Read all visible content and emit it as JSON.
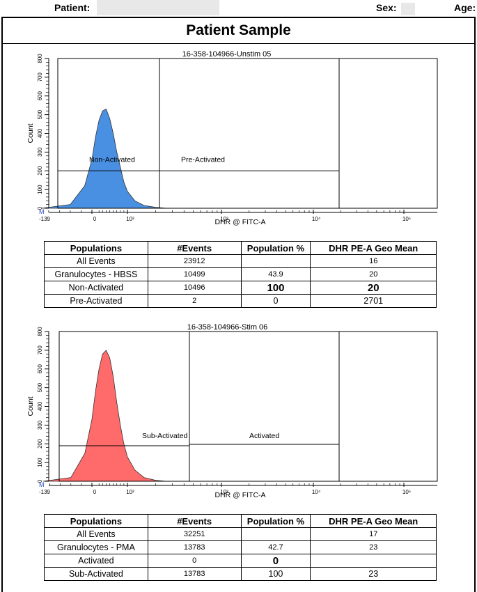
{
  "header": {
    "patient_label": "Patient:",
    "sex_label": "Sex:",
    "age_label": "Age:"
  },
  "section_title": "Patient Sample",
  "colors": {
    "unstim_fill": "#4a90e2",
    "stim_fill": "#ff6a6a",
    "outline": "#000000"
  },
  "chart_data": [
    {
      "type": "area",
      "title": "16-358-104966-Unstim 05",
      "xlabel": "DHR @ FITC-A",
      "ylabel": "Count",
      "ylim": [
        0,
        800
      ],
      "y_ticks": [
        "0",
        "100",
        "200",
        "300",
        "400",
        "500",
        "600",
        "700",
        "800"
      ],
      "x_ticks": [
        "-139",
        "0",
        "10²",
        "10³",
        "10⁴",
        "10⁵"
      ],
      "x_min_label": "M",
      "gates": [
        {
          "name": "Non-Activated",
          "y_level": 200
        },
        {
          "name": "Pre-Activated",
          "y_level": 200
        }
      ],
      "histogram": {
        "x": [
          -139,
          -60,
          -20,
          0,
          10,
          20,
          30,
          40,
          50,
          60,
          70,
          80,
          90,
          100,
          120,
          150,
          200,
          260
        ],
        "counts": [
          0,
          20,
          120,
          260,
          380,
          470,
          520,
          530,
          480,
          400,
          300,
          220,
          140,
          90,
          40,
          15,
          5,
          0
        ]
      }
    },
    {
      "type": "area",
      "title": "16-358-104966-Stim 06",
      "xlabel": "DHR @ FITC-A",
      "ylabel": "Count",
      "ylim": [
        0,
        800
      ],
      "y_ticks": [
        "0",
        "100",
        "200",
        "300",
        "400",
        "500",
        "600",
        "700",
        "800"
      ],
      "x_ticks": [
        "-139",
        "0",
        "10²",
        "10³",
        "10⁴",
        "10⁵"
      ],
      "x_min_label": "M",
      "gates": [
        {
          "name": "Sub-Activated",
          "y_level": 190
        },
        {
          "name": "Activated",
          "y_level": 190
        }
      ],
      "histogram": {
        "x": [
          -139,
          -60,
          -20,
          0,
          10,
          20,
          30,
          40,
          50,
          60,
          70,
          80,
          90,
          100,
          120,
          150,
          200,
          260
        ],
        "counts": [
          0,
          20,
          150,
          330,
          480,
          600,
          680,
          700,
          660,
          560,
          420,
          300,
          200,
          130,
          60,
          20,
          5,
          0
        ]
      }
    }
  ],
  "tables": [
    {
      "headers": [
        "Populations",
        "#Events",
        "Population %",
        "DHR PE-A Geo Mean"
      ],
      "rows": [
        [
          "All Events",
          "23912",
          "",
          "16"
        ],
        [
          "Granulocytes - HBSS",
          "10499",
          "43.9",
          "20"
        ],
        [
          "Non-Activated",
          "10496",
          "100",
          "20"
        ],
        [
          "Pre-Activated",
          "2",
          "0",
          "2701"
        ]
      ]
    },
    {
      "headers": [
        "Populations",
        "#Events",
        "Population %",
        "DHR PE-A Geo Mean"
      ],
      "rows": [
        [
          "All Events",
          "32251",
          "",
          "17"
        ],
        [
          "Granulocytes - PMA",
          "13783",
          "42.7",
          "23"
        ],
        [
          "Activated",
          "0",
          "0",
          ""
        ],
        [
          "Sub-Activated",
          "13783",
          "100",
          "23"
        ]
      ]
    }
  ]
}
